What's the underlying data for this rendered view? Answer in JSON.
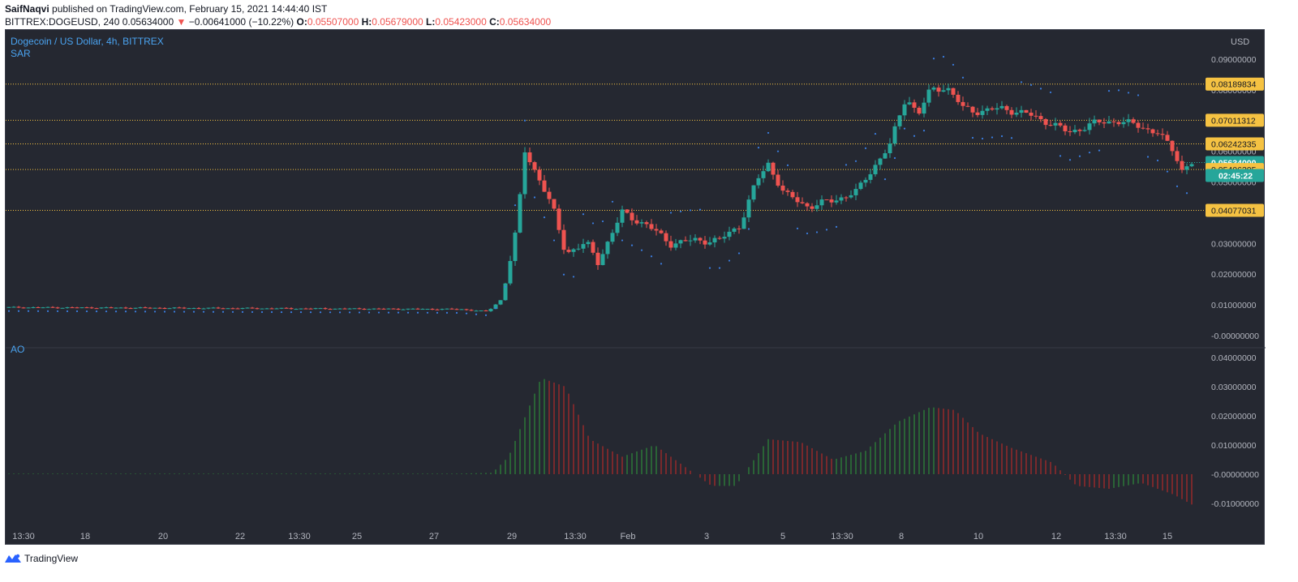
{
  "header": {
    "author": "SaifNaqvi",
    "published_text": "published on TradingView.com, February 15, 2021 14:44:40 IST",
    "symbol": "BITTREX:DOGEUSD, 240",
    "last_price": "0.05634000",
    "change": "−0.00641000 (−10.22%)",
    "ohlc": {
      "O": "0.05507000",
      "H": "0.05679000",
      "L": "0.05423000",
      "C": "0.05634000"
    }
  },
  "legend": {
    "title": "Dogecoin / US Dollar, 4h, BITTREX",
    "indicator": "SAR",
    "ao_label": "AO"
  },
  "price_axis": {
    "currency": "USD",
    "ticks": [
      "0.09000000",
      "0.08000000",
      "0.07000000",
      "0.06000000",
      "0.05000000",
      "0.04000000",
      "0.03000000",
      "0.02000000",
      "0.01000000",
      "-0.00000000"
    ],
    "level_labels": [
      "0.08189834",
      "0.07011312",
      "0.06242335",
      "0.05634000",
      "0.05406305",
      "0.04077031"
    ],
    "countdown": "02:45:22"
  },
  "ao_axis": {
    "ticks": [
      "0.04000000",
      "0.03000000",
      "0.02000000",
      "0.01000000",
      "-0.00000000",
      "-0.01000000"
    ]
  },
  "time_axis": {
    "labels": [
      "13:30",
      "18",
      "20",
      "22",
      "13:30",
      "25",
      "27",
      "29",
      "13:30",
      "Feb",
      "3",
      "5",
      "13:30",
      "8",
      "10",
      "12",
      "13:30",
      "15"
    ]
  },
  "footer": {
    "brand": "TradingView"
  },
  "colors": {
    "background": "#252831",
    "up": "#26a69a",
    "down": "#ef5350",
    "sar": "#3b7ee0",
    "level_line": "#f5c242",
    "level_label_bg": "#f5c242",
    "current_price_bg": "#26a69a",
    "ao_up": "#2e8b3a",
    "ao_down": "#b22a2a",
    "axis_text": "#b2b5be",
    "legend_text": "#4aa3f0"
  },
  "chart_data": [
    {
      "type": "candlestick",
      "title": "Dogecoin / US Dollar, 4h, BITTREX",
      "symbol": "BITTREX:DOGEUSD",
      "timeframe": "4h",
      "ylabel": "USD",
      "ylim": [
        0,
        0.09
      ],
      "x": [
        "Jan 16",
        "Jan 18",
        "Jan 20",
        "Jan 22",
        "Jan 24",
        "Jan 25",
        "Jan 27",
        "Jan 29",
        "Jan 30",
        "Feb 1",
        "Feb 3",
        "Feb 5",
        "Feb 6",
        "Feb 8",
        "Feb 10",
        "Feb 12",
        "Feb 13",
        "Feb 15"
      ],
      "close": [
        0.0092,
        0.0088,
        0.0091,
        0.0086,
        0.0082,
        0.0088,
        0.0085,
        0.0075,
        0.034,
        0.037,
        0.032,
        0.056,
        0.042,
        0.081,
        0.074,
        0.069,
        0.069,
        0.0563
      ],
      "horizontal_levels": [
        0.08189834,
        0.07011312,
        0.06242335,
        0.05634,
        0.05406305,
        0.04077031
      ],
      "overlays": [
        "Parabolic SAR"
      ]
    },
    {
      "type": "bar",
      "title": "AO",
      "ylim": [
        -0.012,
        0.042
      ],
      "x": [
        "Jan 16",
        "Jan 18",
        "Jan 20",
        "Jan 22",
        "Jan 24",
        "Jan 25",
        "Jan 27",
        "Jan 29",
        "Jan 30",
        "Feb 1",
        "Feb 3",
        "Feb 5",
        "Feb 6",
        "Feb 8",
        "Feb 10",
        "Feb 12",
        "Feb 13",
        "Feb 15"
      ],
      "values": [
        0.0002,
        0.0001,
        0.0001,
        0.0,
        0.0,
        0.0001,
        0.0,
        0.001,
        0.032,
        0.01,
        -0.003,
        0.012,
        0.005,
        0.022,
        0.011,
        0.002,
        -0.004,
        -0.012
      ]
    }
  ]
}
